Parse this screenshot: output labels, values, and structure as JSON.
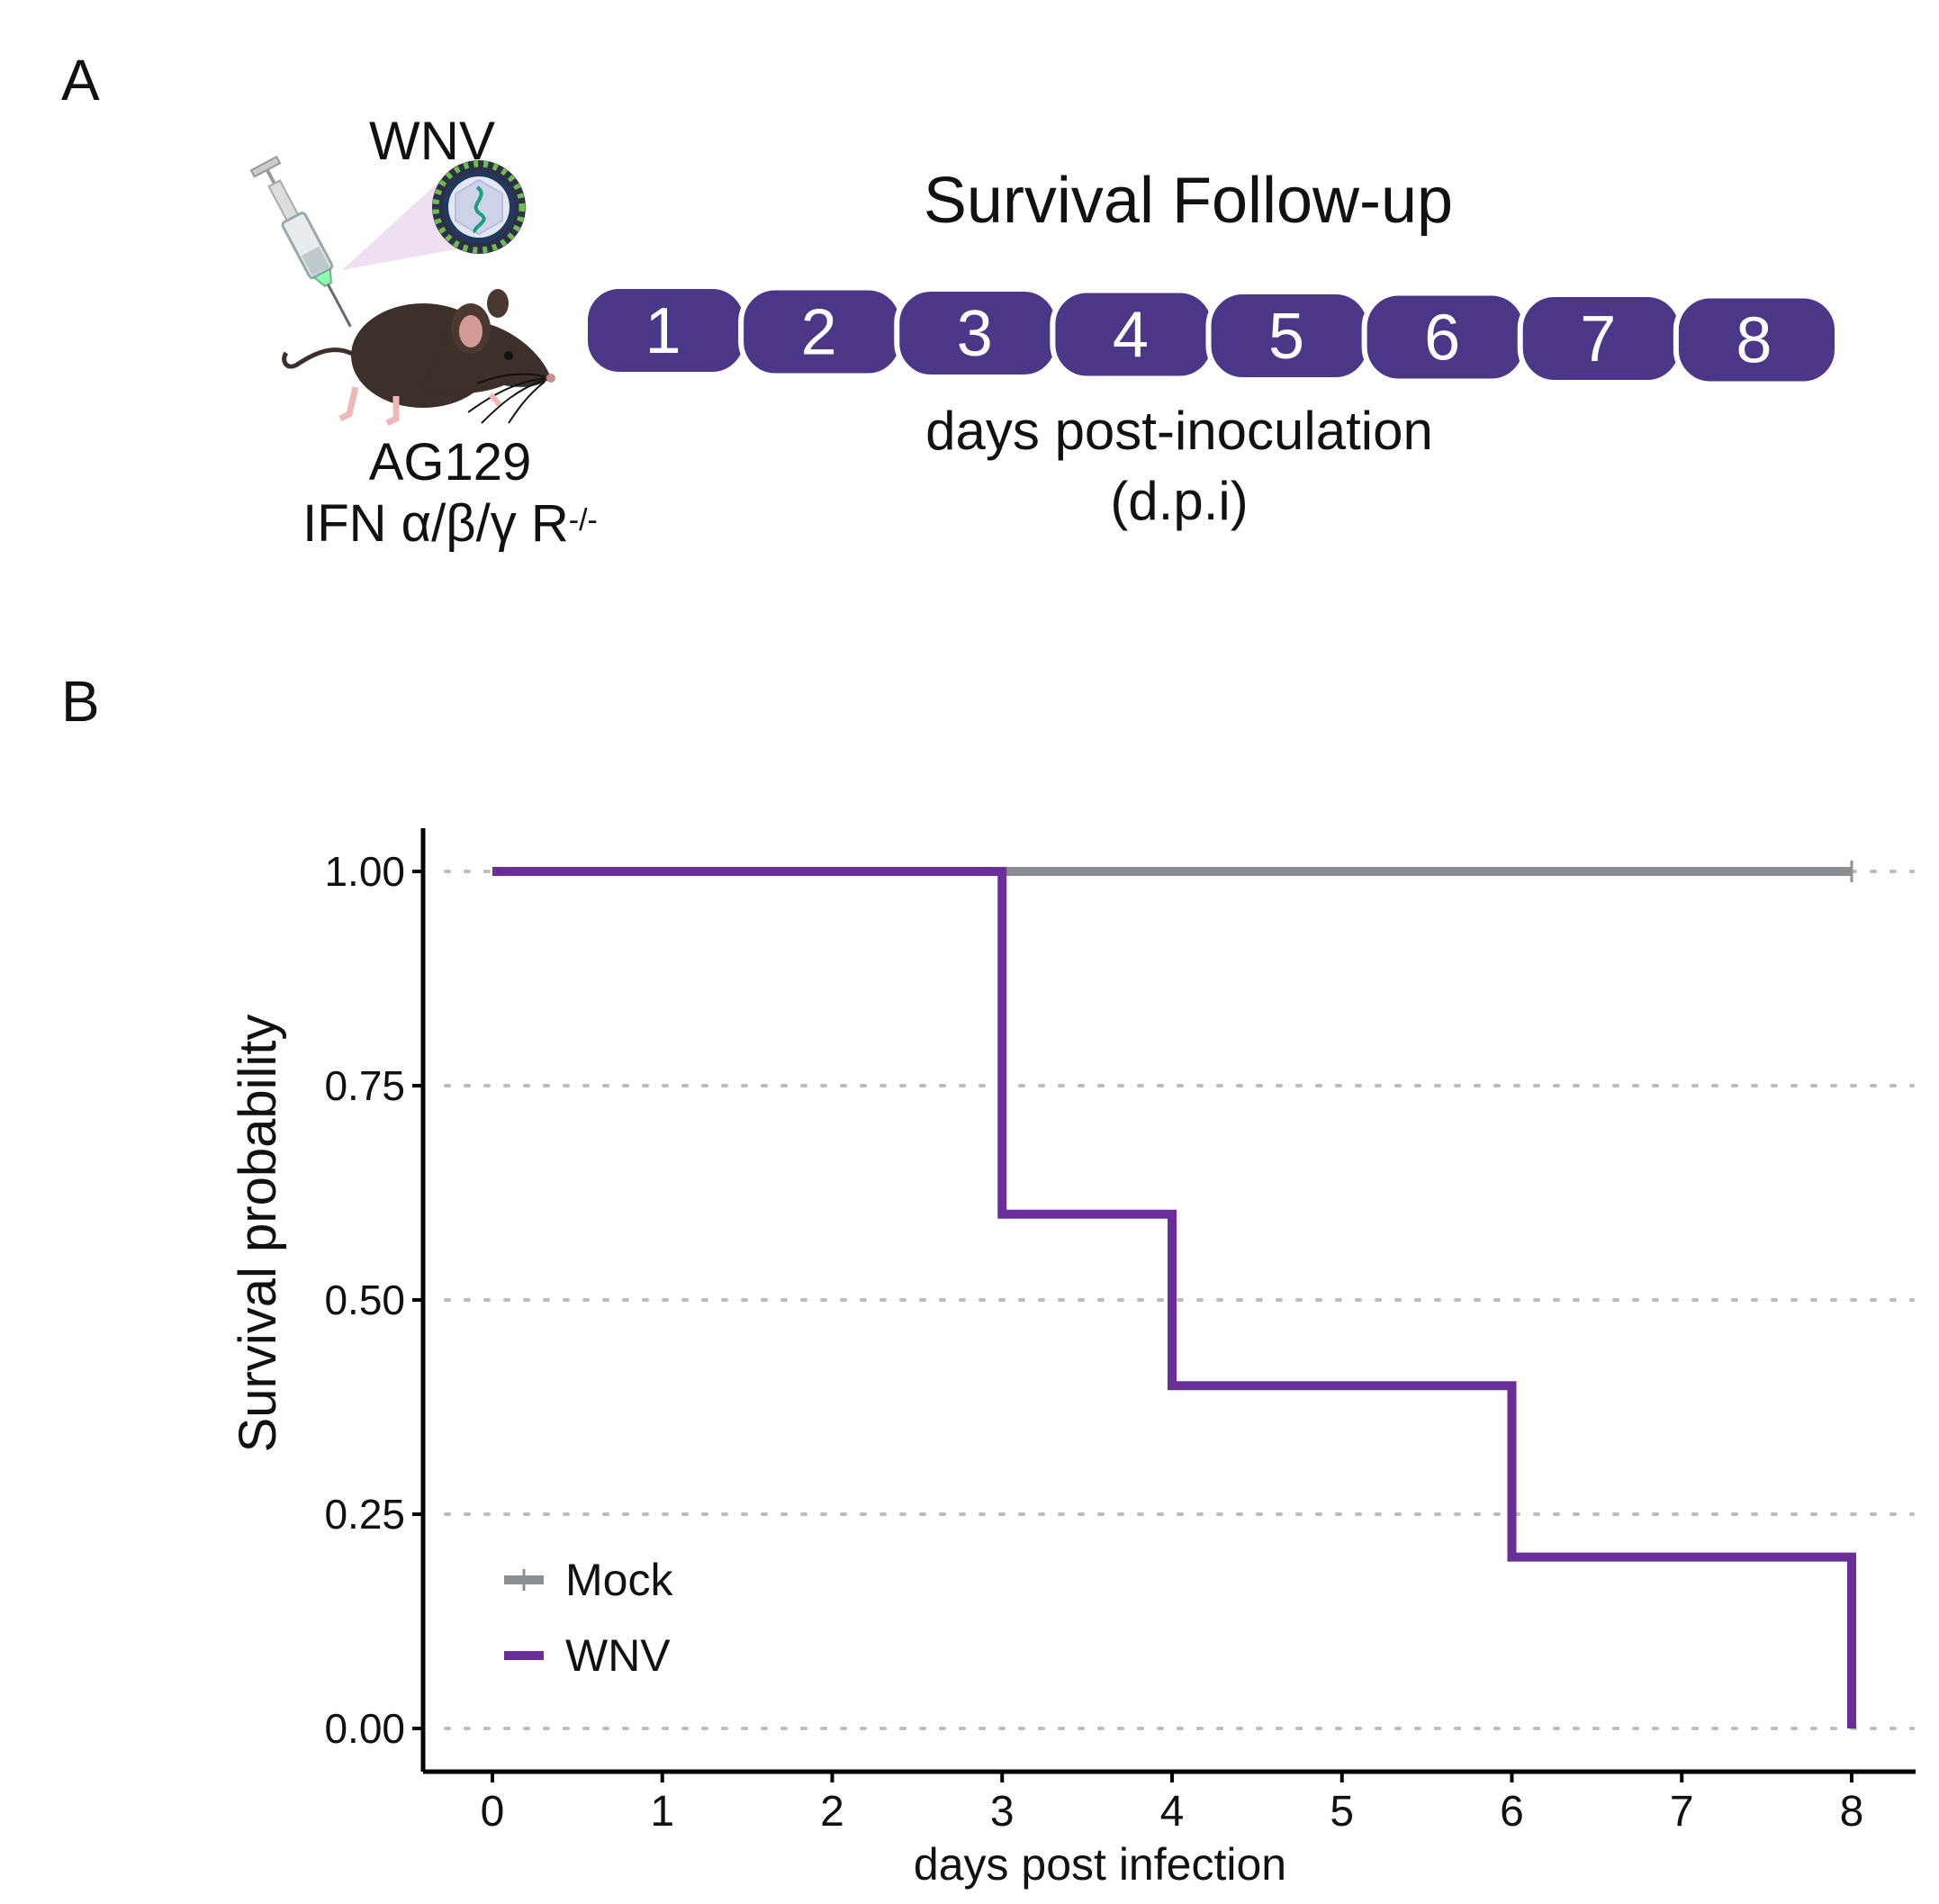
{
  "panel_labels": {
    "a": "A",
    "b": "B"
  },
  "schematic": {
    "inoculum_label": "WNV",
    "mouse_strain": "AG129",
    "mouse_genotype_prefix": "IFN α/β/γ R",
    "mouse_genotype_superscript": "-/-",
    "timeline_title": "Survival Follow-up",
    "timeline_days": [
      "1",
      "2",
      "3",
      "4",
      "5",
      "6",
      "7",
      "8"
    ],
    "timeline_caption_line1": "days post-inoculation",
    "timeline_caption_line2": "(d.p.i)",
    "colors": {
      "timeline": "#4b3687",
      "mouse": "#3d2f2a"
    },
    "icons": [
      "syringe-icon",
      "virus-icon",
      "mouse-icon"
    ]
  },
  "chart_data": {
    "type": "line",
    "step": true,
    "title": "",
    "xlabel": "days post infection",
    "ylabel": "Survival probability",
    "xlim": [
      0,
      8
    ],
    "ylim": [
      0,
      1
    ],
    "x_ticks": [
      0,
      1,
      2,
      3,
      4,
      5,
      6,
      7,
      8
    ],
    "x_tick_labels": [
      "0",
      "1",
      "2",
      "3",
      "4",
      "5",
      "6",
      "7",
      "8"
    ],
    "y_ticks": [
      0,
      0.25,
      0.5,
      0.75,
      1
    ],
    "y_tick_labels": [
      "0.00",
      "0.25",
      "0.50",
      "0.75",
      "1.00"
    ],
    "grid": "horizontal dotted",
    "legend_position": "bottom-left",
    "series": [
      {
        "name": "Mock",
        "color": "#8c8f91",
        "x": [
          0,
          8
        ],
        "y": [
          1.0,
          1.0
        ],
        "censor_marks": [
          8
        ]
      },
      {
        "name": "WNV",
        "color": "#6a2e9a",
        "x": [
          0,
          3,
          4,
          6,
          8
        ],
        "y": [
          1.0,
          0.6,
          0.4,
          0.2,
          0.0
        ],
        "censor_marks": []
      }
    ]
  }
}
